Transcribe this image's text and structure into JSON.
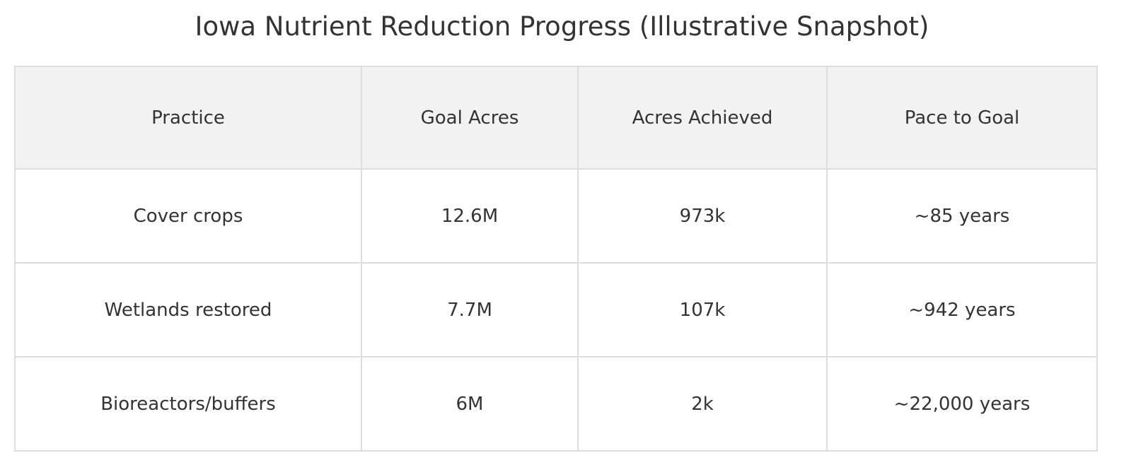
{
  "chart_data": {
    "type": "table",
    "title": "Iowa Nutrient Reduction Progress (Illustrative Snapshot)",
    "columns": [
      "Practice",
      "Goal Acres",
      "Acres Achieved",
      "Pace to Goal"
    ],
    "rows": [
      [
        "Cover crops",
        "12.6M",
        "973k",
        "~85 years"
      ],
      [
        "Wetlands restored",
        "7.7M",
        "107k",
        "~942 years"
      ],
      [
        "Bioreactors/buffers",
        "6M",
        "2k",
        "~22,000 years"
      ]
    ],
    "colors": {
      "header_background": "#f2f2f2",
      "grid_lines": "#dddddd",
      "text": "#333333"
    }
  }
}
